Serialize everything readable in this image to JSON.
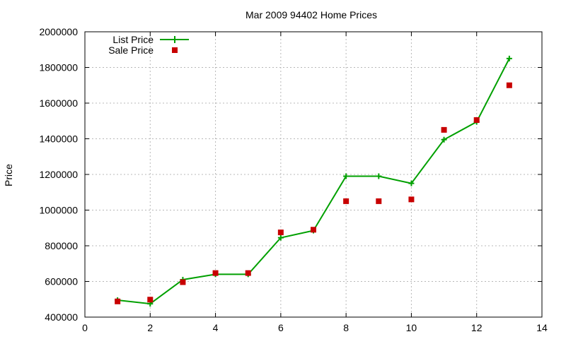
{
  "chart_data": {
    "type": "line",
    "title": "Mar 2009 94402 Home Prices",
    "xlabel": "",
    "ylabel": "Price",
    "xlim": [
      0,
      14
    ],
    "ylim": [
      400000,
      2000000
    ],
    "grid": true,
    "legend_position": "top-left",
    "x_ticks": [
      "0",
      "2",
      "4",
      "6",
      "8",
      "10",
      "12",
      "14"
    ],
    "y_ticks": [
      "400000",
      "600000",
      "800000",
      "1000000",
      "1200000",
      "1400000",
      "1600000",
      "1800000",
      "2000000"
    ],
    "series": [
      {
        "name": "List Price",
        "style": "line-with-plus-markers",
        "color": "#00a000",
        "points": [
          [
            1,
            495000
          ],
          [
            2,
            475000
          ],
          [
            3,
            610000
          ],
          [
            4,
            640000
          ],
          [
            5,
            640000
          ],
          [
            6,
            845000
          ],
          [
            7,
            885000
          ],
          [
            8,
            1190000
          ],
          [
            9,
            1190000
          ],
          [
            10,
            1150000
          ],
          [
            11,
            1395000
          ],
          [
            12,
            1495000
          ],
          [
            13,
            1850000
          ]
        ]
      },
      {
        "name": "Sale Price",
        "style": "square-markers",
        "color": "#c80000",
        "points": [
          [
            1,
            488000
          ],
          [
            2,
            498000
          ],
          [
            3,
            596000
          ],
          [
            4,
            647000
          ],
          [
            5,
            647000
          ],
          [
            6,
            875000
          ],
          [
            7,
            890000
          ],
          [
            8,
            1050000
          ],
          [
            9,
            1050000
          ],
          [
            10,
            1060000
          ],
          [
            11,
            1450000
          ],
          [
            12,
            1505000
          ],
          [
            13,
            1700000
          ]
        ]
      }
    ]
  }
}
